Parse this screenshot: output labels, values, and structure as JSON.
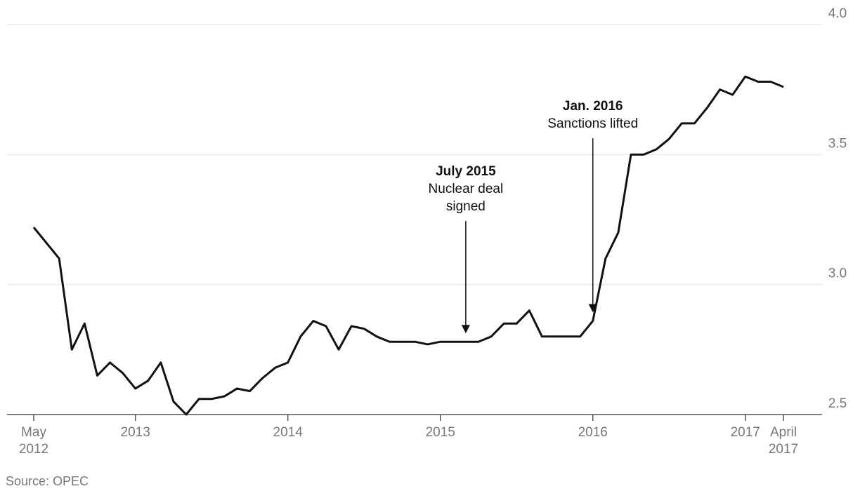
{
  "chart_data": {
    "type": "line",
    "x": [
      "2012-05",
      "2012-06",
      "2012-07",
      "2012-08",
      "2012-09",
      "2012-10",
      "2012-11",
      "2012-12",
      "2013-01",
      "2013-02",
      "2013-03",
      "2013-04",
      "2013-05",
      "2013-06",
      "2013-07",
      "2013-08",
      "2013-09",
      "2013-10",
      "2013-11",
      "2013-12",
      "2014-01",
      "2014-02",
      "2014-03",
      "2014-04",
      "2014-05",
      "2014-06",
      "2014-07",
      "2014-08",
      "2014-09",
      "2014-10",
      "2014-11",
      "2014-12",
      "2015-01",
      "2015-02",
      "2015-03",
      "2015-04",
      "2015-05",
      "2015-06",
      "2015-07",
      "2015-08",
      "2015-09",
      "2015-10",
      "2015-11",
      "2015-12",
      "2016-01",
      "2016-02",
      "2016-03",
      "2016-04",
      "2016-05",
      "2016-06",
      "2016-07",
      "2016-08",
      "2016-09",
      "2016-10",
      "2016-11",
      "2016-12",
      "2017-01",
      "2017-02",
      "2017-03",
      "2017-04"
    ],
    "series": [
      {
        "color": "#111111",
        "values": [
          3.22,
          3.16,
          3.1,
          2.75,
          2.85,
          2.65,
          2.7,
          2.66,
          2.6,
          2.63,
          2.7,
          2.55,
          2.5,
          2.56,
          2.56,
          2.57,
          2.6,
          2.59,
          2.64,
          2.68,
          2.7,
          2.8,
          2.86,
          2.84,
          2.75,
          2.84,
          2.83,
          2.8,
          2.78,
          2.78,
          2.78,
          2.77,
          2.78,
          2.78,
          2.78,
          2.78,
          2.8,
          2.85,
          2.85,
          2.9,
          2.8,
          2.8,
          2.8,
          2.8,
          2.86,
          3.1,
          3.2,
          3.5,
          3.5,
          3.52,
          3.56,
          3.62,
          3.62,
          3.68,
          3.75,
          3.73,
          3.8,
          3.78,
          3.78,
          3.76
        ]
      }
    ],
    "xlim": [
      "2012-05",
      "2017-04"
    ],
    "xticks": [
      {
        "value": "2012-05",
        "label": "May 2012"
      },
      {
        "value": "2013-01",
        "label": "2013"
      },
      {
        "value": "2014-01",
        "label": "2014"
      },
      {
        "value": "2015-01",
        "label": "2015"
      },
      {
        "value": "2016-01",
        "label": "2016"
      },
      {
        "value": "2017-01",
        "label": "2017"
      },
      {
        "value": "2017-04",
        "label": "April 2017"
      }
    ],
    "ylim": [
      2.5,
      4.0
    ],
    "yticks": [
      2.5,
      {
        "value": 3,
        "label": "3.0"
      },
      3.5,
      {
        "value": 4,
        "label": "4.0"
      }
    ],
    "grid": true,
    "annotations": [
      {
        "x": "2015-03",
        "title": "July 2015",
        "text": "Nuclear deal signed"
      },
      {
        "x": "2016-01",
        "title": "Jan. 2016",
        "text": "Sanctions lifted"
      }
    ],
    "source": "Source: OPEC"
  }
}
